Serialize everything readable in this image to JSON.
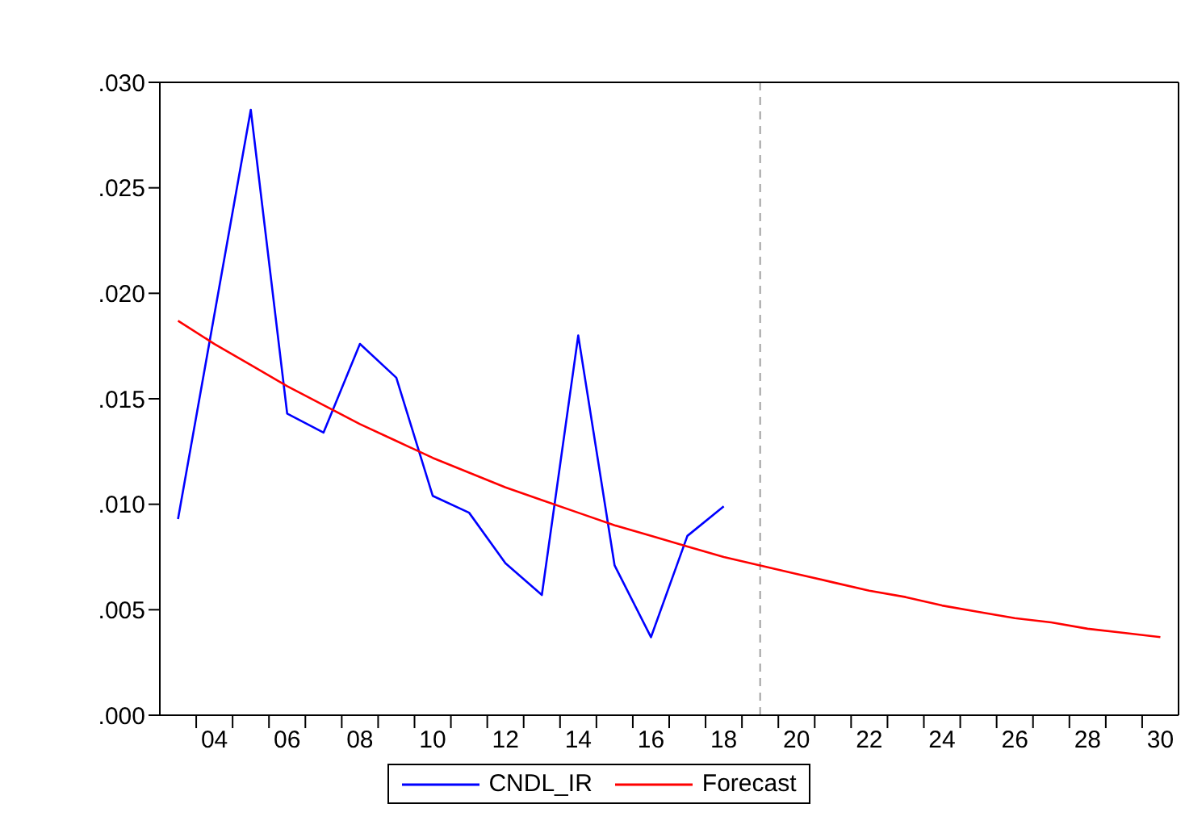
{
  "chart_data": {
    "type": "line",
    "x": [
      2003,
      2004,
      2005,
      2006,
      2007,
      2008,
      2009,
      2010,
      2011,
      2012,
      2013,
      2014,
      2015,
      2016,
      2017,
      2018,
      2019,
      2020,
      2021,
      2022,
      2023,
      2024,
      2025,
      2026,
      2027,
      2028,
      2029,
      2030
    ],
    "series": [
      {
        "name": "CNDL_IR",
        "color": "#0000ff",
        "x": [
          2003,
          2004,
          2005,
          2006,
          2007,
          2008,
          2009,
          2010,
          2011,
          2012,
          2013,
          2014,
          2015,
          2016,
          2017,
          2018
        ],
        "values": [
          0.0093,
          0.019,
          0.0287,
          0.0143,
          0.0134,
          0.0176,
          0.016,
          0.0104,
          0.0096,
          0.0072,
          0.0057,
          0.018,
          0.0071,
          0.0037,
          0.0085,
          0.0099
        ]
      },
      {
        "name": "Forecast",
        "color": "#ff0000",
        "values": [
          0.0187,
          0.0176,
          0.0166,
          0.0156,
          0.0147,
          0.0138,
          0.013,
          0.0122,
          0.0115,
          0.0108,
          0.0102,
          0.0096,
          0.009,
          0.0085,
          0.008,
          0.0075,
          0.0071,
          0.0067,
          0.0063,
          0.0059,
          0.0056,
          0.0052,
          0.0049,
          0.0046,
          0.0044,
          0.0041,
          0.0039,
          0.0037
        ]
      }
    ],
    "xlim": [
      2002.5,
      2030.5
    ],
    "xticks": [
      {
        "value": 2004,
        "label": "04"
      },
      {
        "value": 2006,
        "label": "06"
      },
      {
        "value": 2008,
        "label": "08"
      },
      {
        "value": 2010,
        "label": "10"
      },
      {
        "value": 2012,
        "label": "12"
      },
      {
        "value": 2014,
        "label": "14"
      },
      {
        "value": 2016,
        "label": "16"
      },
      {
        "value": 2018,
        "label": "18"
      },
      {
        "value": 2020,
        "label": "20"
      },
      {
        "value": 2022,
        "label": "22"
      },
      {
        "value": 2024,
        "label": "24"
      },
      {
        "value": 2026,
        "label": "26"
      },
      {
        "value": 2028,
        "label": "28"
      },
      {
        "value": 2030,
        "label": "30"
      },
      {
        "value": 2003.5,
        "label": null
      },
      {
        "value": 2004.5,
        "label": null
      },
      {
        "value": 2005.5,
        "label": null
      },
      {
        "value": 2006.5,
        "label": null
      },
      {
        "value": 2007.5,
        "label": null
      },
      {
        "value": 2008.5,
        "label": null
      },
      {
        "value": 2009.5,
        "label": null
      },
      {
        "value": 2010.5,
        "label": null
      },
      {
        "value": 2011.5,
        "label": null
      },
      {
        "value": 2012.5,
        "label": null
      },
      {
        "value": 2013.5,
        "label": null
      },
      {
        "value": 2014.5,
        "label": null
      },
      {
        "value": 2015.5,
        "label": null
      },
      {
        "value": 2016.5,
        "label": null
      },
      {
        "value": 2017.5,
        "label": null
      },
      {
        "value": 2018.5,
        "label": null
      },
      {
        "value": 2019.5,
        "label": null
      },
      {
        "value": 2020.5,
        "label": null
      },
      {
        "value": 2021.5,
        "label": null
      },
      {
        "value": 2022.5,
        "label": null
      },
      {
        "value": 2023.5,
        "label": null
      },
      {
        "value": 2024.5,
        "label": null
      },
      {
        "value": 2025.5,
        "label": null
      },
      {
        "value": 2026.5,
        "label": null
      },
      {
        "value": 2027.5,
        "label": null
      },
      {
        "value": 2028.5,
        "label": null
      },
      {
        "value": 2029.5,
        "label": null
      }
    ],
    "ylim": [
      0,
      0.03
    ],
    "yticks": [
      {
        "value": 0,
        "label": ".000"
      },
      {
        "value": 0.005,
        "label": ".005"
      },
      {
        "value": 0.01,
        "label": ".010"
      },
      {
        "value": 0.015,
        "label": ".015"
      },
      {
        "value": 0.02,
        "label": ".020"
      },
      {
        "value": 0.025,
        "label": ".025"
      },
      {
        "value": 0.03,
        "label": ".030"
      }
    ],
    "ref_lines": [
      {
        "axis": "x",
        "value": 2019,
        "color": "#a0a0a0",
        "line_style": "dashed"
      }
    ],
    "legend": "bottom",
    "grid": false,
    "marker": "none",
    "line_style": "solid"
  }
}
